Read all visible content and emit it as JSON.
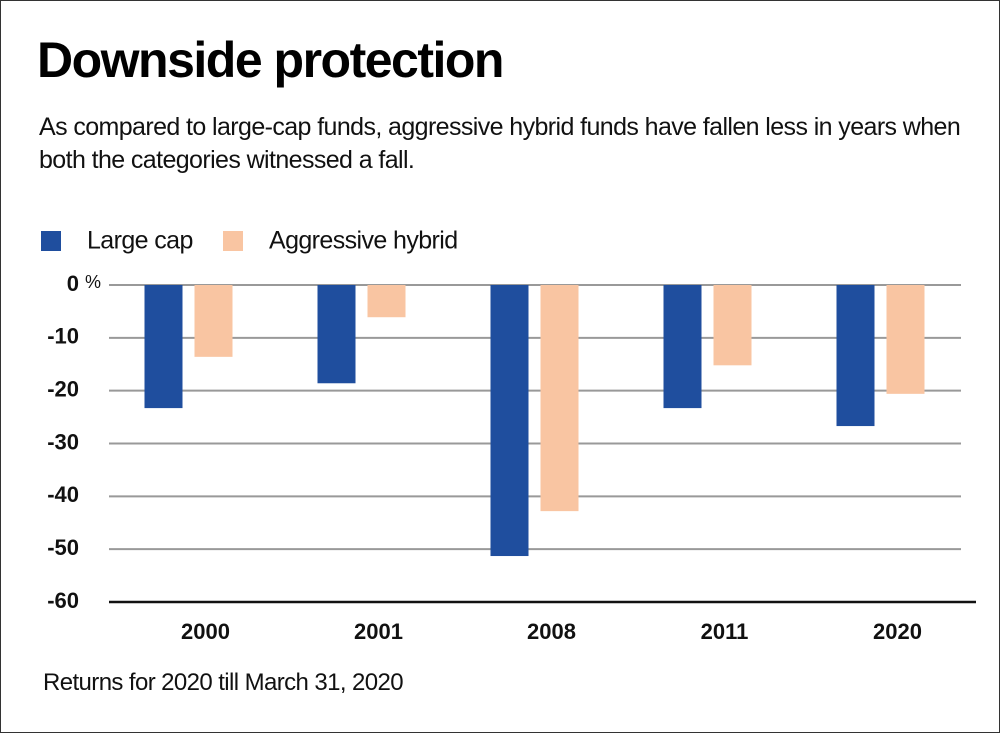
{
  "chart_data": {
    "type": "bar",
    "title": "Downside protection",
    "subtitle": "As compared to large-cap funds, aggressive hybrid funds have fallen less in years when both the categories witnessed a fall.",
    "note": "Returns for 2020 till March 31, 2020",
    "y_unit": "%",
    "categories": [
      "2000",
      "2001",
      "2008",
      "2011",
      "2020"
    ],
    "series": [
      {
        "name": "Large cap",
        "color": "#1f4e9e",
        "values": [
          -23.3,
          -18.6,
          -51.3,
          -23.3,
          -26.7
        ]
      },
      {
        "name": "Aggressive hybrid",
        "color": "#f9c5a2",
        "values": [
          -13.6,
          -6.1,
          -42.8,
          -15.2,
          -20.6
        ]
      }
    ],
    "ylim": [
      -60,
      0
    ],
    "yticks": [
      0,
      -10,
      -20,
      -30,
      -40,
      -50,
      -60
    ],
    "grid": true
  }
}
